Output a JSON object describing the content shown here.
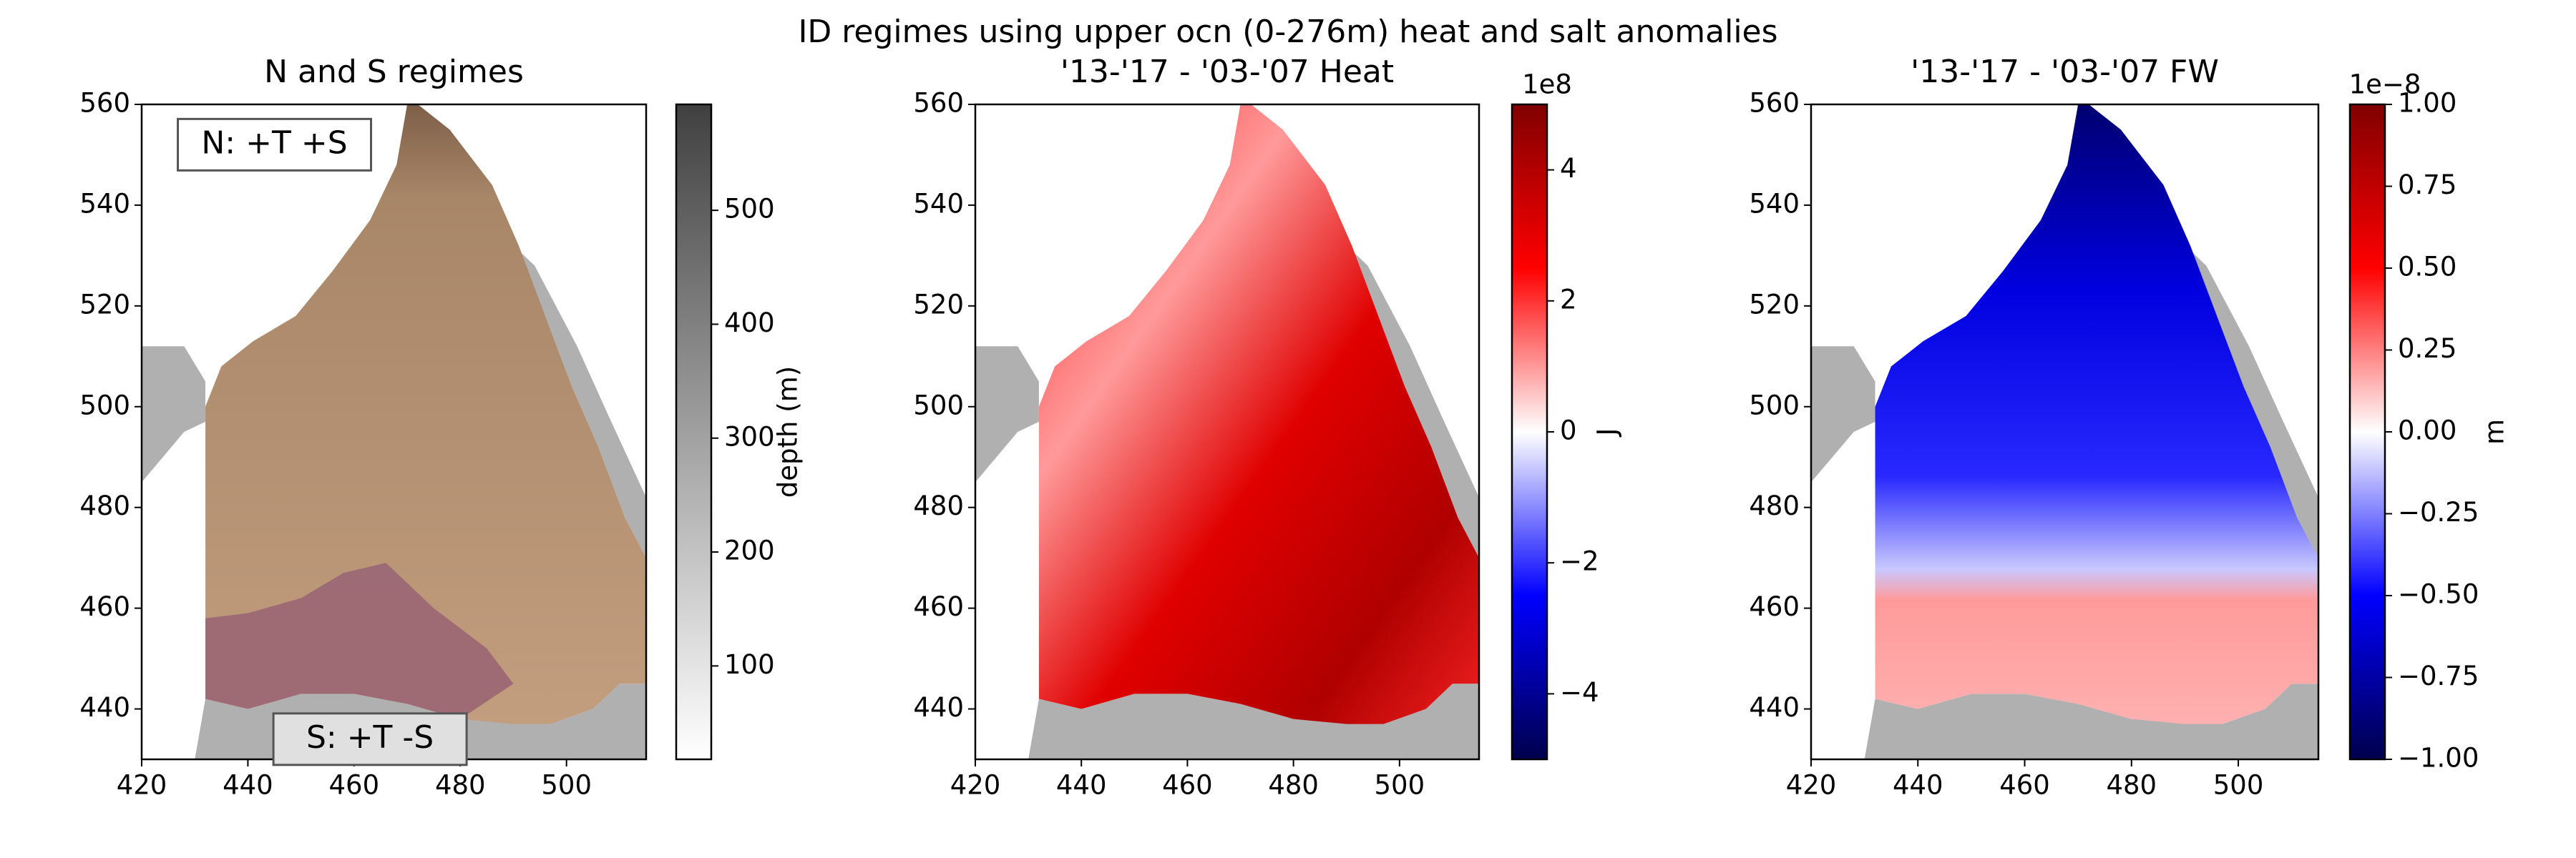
{
  "title": "ID regimes using upper ocn (0-276m) heat and salt anomalies",
  "chart_data": [
    {
      "type": "map",
      "title": "N and S regimes",
      "xlim": [
        420,
        515
      ],
      "xticks": [
        420,
        440,
        460,
        480,
        500
      ],
      "ylim": [
        430,
        560
      ],
      "yticks": [
        440,
        460,
        480,
        500,
        520,
        540,
        560
      ],
      "annotations": [
        "N: +T +S",
        "S: +T -S"
      ],
      "colorbar": {
        "label": "depth (m)",
        "clim": [
          18,
          593
        ],
        "ticks": [
          100,
          200,
          300,
          400,
          500
        ],
        "colors": [
          "#ffffff",
          "#404040"
        ]
      }
    },
    {
      "type": "map",
      "title": "'13-'17 - '03-'07 Heat",
      "xlim": [
        420,
        515
      ],
      "xticks": [
        420,
        440,
        460,
        480,
        500
      ],
      "ylim": [
        430,
        560
      ],
      "yticks": [
        440,
        460,
        480,
        500,
        520,
        540,
        560
      ],
      "colorbar": {
        "label": "J",
        "offset": "1e8",
        "clim": [
          -5,
          5
        ],
        "ticks": [
          {
            "value": -4,
            "label": "−4"
          },
          {
            "value": -2,
            "label": "−2"
          },
          0,
          2,
          4
        ],
        "colors": [
          "#00004c",
          "#0000ff",
          "#ffffff",
          "#ff0000",
          "#800000"
        ]
      }
    },
    {
      "type": "map",
      "title": "'13-'17 - '03-'07 FW",
      "xlim": [
        420,
        515
      ],
      "xticks": [
        420,
        440,
        460,
        480,
        500
      ],
      "ylim": [
        430,
        560
      ],
      "yticks": [
        440,
        460,
        480,
        500,
        520,
        540,
        560
      ],
      "colorbar": {
        "label": "m",
        "offset": "1e−8",
        "clim": [
          -1,
          1
        ],
        "ticks": [
          {
            "value": -1,
            "label": "−1.00"
          },
          {
            "value": -0.75,
            "label": "−0.75"
          },
          {
            "value": -0.5,
            "label": "−0.50"
          },
          {
            "value": -0.25,
            "label": "−0.25"
          },
          {
            "value": 0,
            "label": "0.00"
          },
          {
            "value": 0.25,
            "label": "0.25"
          },
          {
            "value": 0.5,
            "label": "0.50"
          },
          {
            "value": 0.75,
            "label": "0.75"
          },
          {
            "value": 1,
            "label": "1.00"
          }
        ],
        "colors": [
          "#00004c",
          "#0000ff",
          "#ffffff",
          "#ff0000",
          "#800000"
        ]
      }
    }
  ]
}
